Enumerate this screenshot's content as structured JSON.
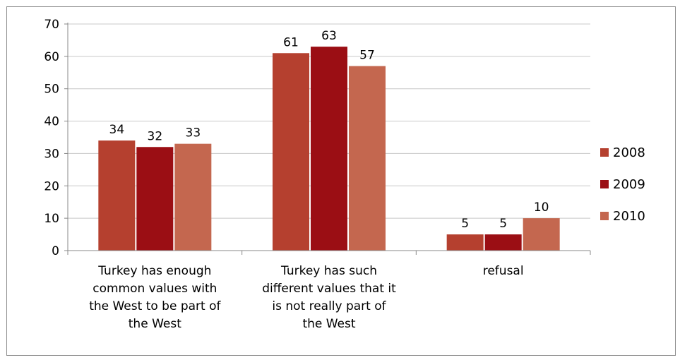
{
  "chart_data": {
    "type": "bar",
    "categories": [
      [
        "Turkey has enough",
        "common values with",
        "the West to be part of",
        "the West"
      ],
      [
        "Turkey has such",
        "different values that it",
        "is not really part of",
        "the West"
      ],
      [
        "refusal"
      ]
    ],
    "series": [
      {
        "name": "2008",
        "values": [
          34,
          61,
          5
        ],
        "color": "#B5402F"
      },
      {
        "name": "2009",
        "values": [
          32,
          63,
          5
        ],
        "color": "#9B0E14"
      },
      {
        "name": "2010",
        "values": [
          33,
          57,
          10
        ],
        "color": "#C4674F"
      }
    ],
    "y_ticks": [
      "0",
      "10",
      "20",
      "30",
      "40",
      "50",
      "60",
      "70"
    ],
    "ylim": [
      0,
      70
    ],
    "grid": true,
    "legend_position": "right"
  }
}
